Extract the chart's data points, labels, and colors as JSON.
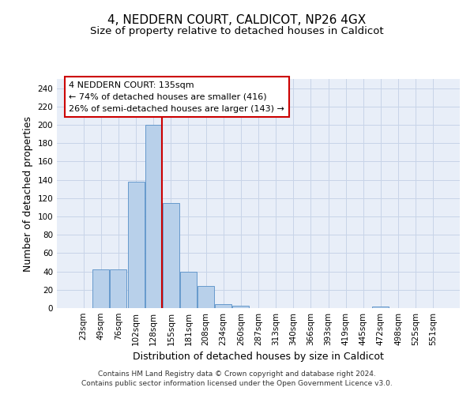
{
  "title_line1": "4, NEDDERN COURT, CALDICOT, NP26 4GX",
  "title_line2": "Size of property relative to detached houses in Caldicot",
  "xlabel": "Distribution of detached houses by size in Caldicot",
  "ylabel": "Number of detached properties",
  "bin_labels": [
    "23sqm",
    "49sqm",
    "76sqm",
    "102sqm",
    "128sqm",
    "155sqm",
    "181sqm",
    "208sqm",
    "234sqm",
    "260sqm",
    "287sqm",
    "313sqm",
    "340sqm",
    "366sqm",
    "393sqm",
    "419sqm",
    "445sqm",
    "472sqm",
    "498sqm",
    "525sqm",
    "551sqm"
  ],
  "bar_values": [
    0,
    42,
    42,
    138,
    200,
    115,
    40,
    24,
    4,
    3,
    0,
    0,
    0,
    0,
    0,
    0,
    0,
    2,
    0,
    0,
    0
  ],
  "bar_color": "#b8d0ea",
  "bar_edge_color": "#6699cc",
  "red_line_x": 4.5,
  "annotation_text": "4 NEDDERN COURT: 135sqm\n← 74% of detached houses are smaller (416)\n26% of semi-detached houses are larger (143) →",
  "annotation_box_color": "#ffffff",
  "annotation_box_edge_color": "#cc0000",
  "red_line_color": "#cc0000",
  "ylim": [
    0,
    250
  ],
  "yticks": [
    0,
    20,
    40,
    60,
    80,
    100,
    120,
    140,
    160,
    180,
    200,
    220,
    240
  ],
  "grid_color": "#c8d4e8",
  "bg_color": "#e8eef8",
  "footnote1": "Contains HM Land Registry data © Crown copyright and database right 2024.",
  "footnote2": "Contains public sector information licensed under the Open Government Licence v3.0.",
  "title_fontsize": 11,
  "subtitle_fontsize": 9.5,
  "axis_label_fontsize": 9,
  "tick_fontsize": 7.5,
  "annot_fontsize": 8
}
